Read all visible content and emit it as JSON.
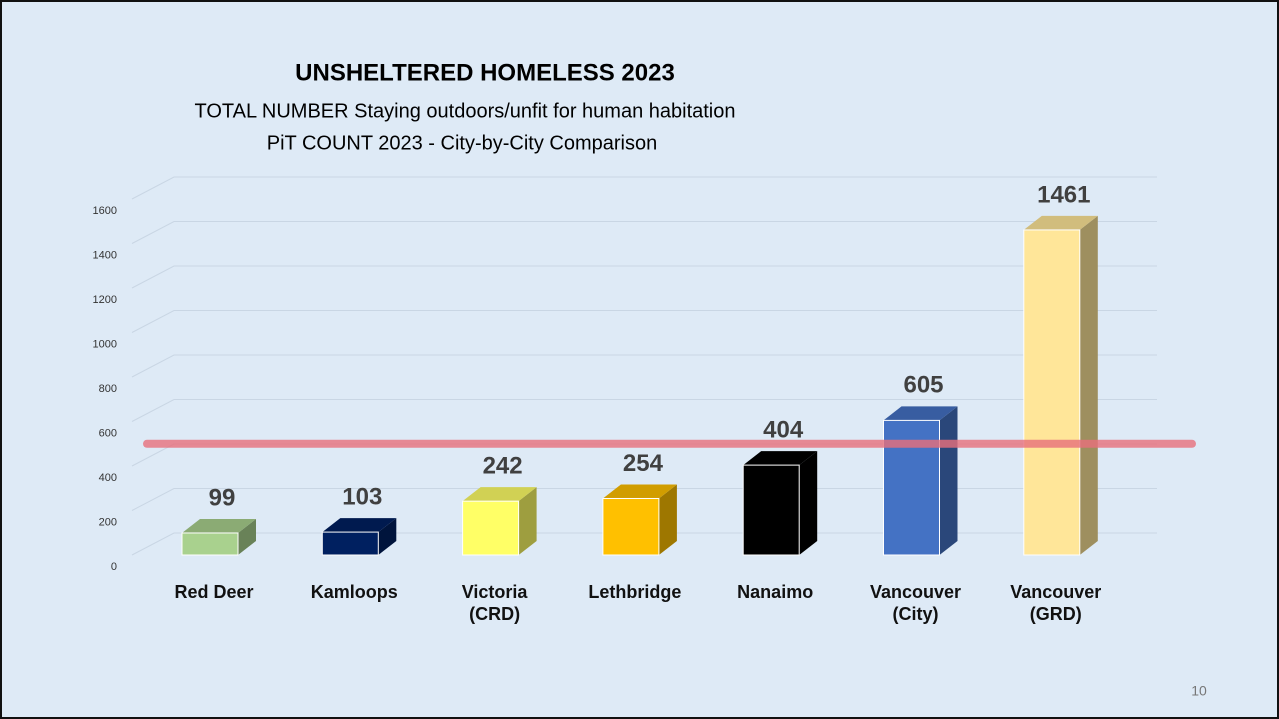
{
  "chart_data": {
    "type": "bar3d",
    "title": "UNSHELTERED HOMELESS 2023",
    "subtitle": "TOTAL NUMBER Staying outdoors/unfit for human habitation",
    "subtitle2": "PiT COUNT 2023 - City-by-City Comparison",
    "categories": [
      "Red Deer",
      "Kamloops",
      "Victoria (CRD)",
      "Lethbridge",
      "Nanaimo",
      "Vancouver (City)",
      "Vancouver (GRD)"
    ],
    "values": [
      99,
      103,
      242,
      254,
      404,
      605,
      1461
    ],
    "colors": [
      "#a9d18e",
      "#002060",
      "#ffff66",
      "#ffc000",
      "#000000",
      "#4472c4",
      "#ffe699"
    ],
    "ylim": [
      0,
      1600
    ],
    "yticks": [
      0,
      200,
      400,
      600,
      800,
      1000,
      1200,
      1400,
      1600
    ],
    "grid": true,
    "reference_line": {
      "value": 500,
      "color": "#e8707c"
    }
  },
  "page_number": "10"
}
